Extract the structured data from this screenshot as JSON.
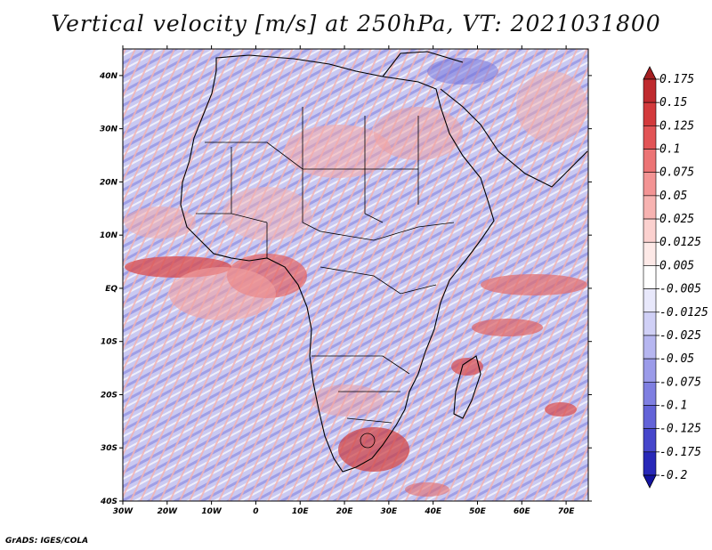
{
  "title": "Vertical velocity [m/s] at 250hPa, VT: 2021031800",
  "footer": "GrADS: IGES/COLA",
  "map": {
    "lat_labels": [
      "40N",
      "30N",
      "20N",
      "10N",
      "EQ",
      "10S",
      "20S",
      "30S",
      "40S"
    ],
    "lon_labels": [
      "30W",
      "20W",
      "10W",
      "0",
      "10E",
      "20E",
      "30E",
      "40E",
      "50E",
      "60E",
      "70E"
    ],
    "lat_range": [
      -40,
      45
    ],
    "lon_range": [
      -30,
      75
    ]
  },
  "colorbar": {
    "labels": [
      "0.175",
      "0.15",
      "0.125",
      "0.1",
      "0.075",
      "0.05",
      "0.025",
      "0.0125",
      "0.005",
      "-0.005",
      "-0.0125",
      "-0.025",
      "-0.05",
      "-0.075",
      "-0.1",
      "-0.125",
      "-0.175",
      "-0.2"
    ],
    "colors": [
      "#a51f22",
      "#bf2a2e",
      "#d33a3c",
      "#e25456",
      "#ec7475",
      "#f39494",
      "#f7b3b1",
      "#fbd1cf",
      "#fde9e7",
      "#ffffff",
      "#e8e8fb",
      "#d0d0f6",
      "#b6b6f0",
      "#9b9be9",
      "#7f7fe1",
      "#6363d8",
      "#4646cb",
      "#2828b8",
      "#1313a0"
    ]
  }
}
